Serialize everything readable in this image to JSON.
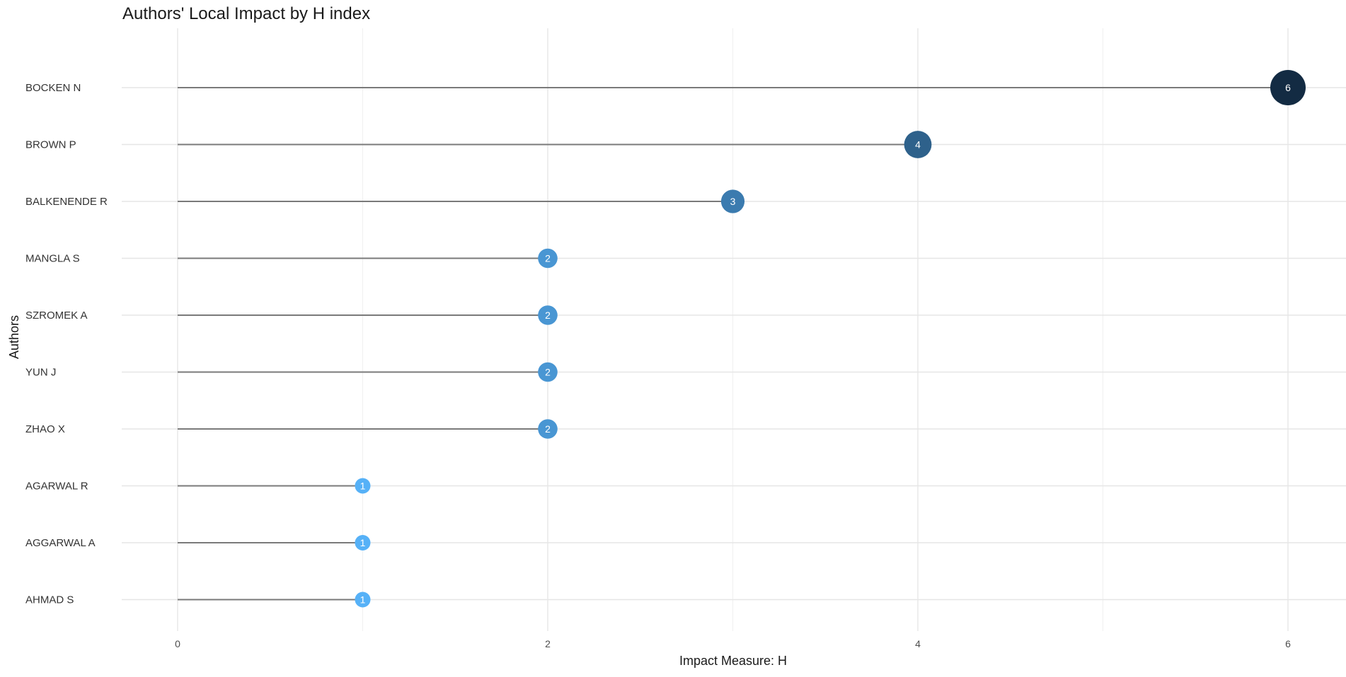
{
  "chart_data": {
    "type": "lollipop",
    "title": "Authors' Local Impact by H index",
    "xlabel": "Impact Measure: H",
    "ylabel": "Authors",
    "xlim": [
      -0.3,
      6.3
    ],
    "xticks": [
      0,
      2,
      4,
      6
    ],
    "grid": true,
    "categories": [
      "BOCKEN N",
      "BROWN P",
      "BALKENENDE R",
      "MANGLA S",
      "SZROMEK A",
      "YUN J",
      "ZHAO X",
      "AGARWAL R",
      "AGGARWAL A",
      "AHMAD S"
    ],
    "values": [
      6,
      4,
      3,
      2,
      2,
      2,
      2,
      1,
      1,
      1
    ],
    "color_scale": {
      "low": "#56B1F7",
      "high": "#132B43"
    }
  }
}
